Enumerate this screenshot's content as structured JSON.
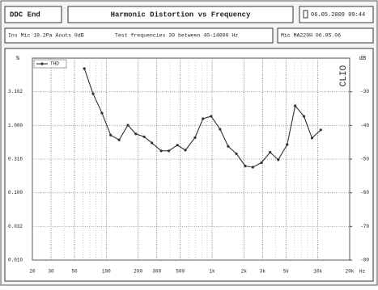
{
  "header": {
    "left": "DDC End",
    "title": "Harmonic Distortion vs Frequency",
    "date": "06.05.2009 09:44"
  },
  "info": {
    "settings": "Ins Mic 18.2Pa  Aouts 0dB",
    "test": "Test frequencies 30 between 40-14000 Hz",
    "mic": "Mic MA220H 06.05.06"
  },
  "chart_data": {
    "type": "line",
    "watermark": "CLIO",
    "y_label": "%",
    "y2_label": "dB",
    "x_unit": "Hz",
    "x": [
      62,
      75,
      91,
      110,
      132,
      160,
      190,
      228,
      270,
      330,
      390,
      470,
      560,
      690,
      820,
      980,
      1190,
      1420,
      1700,
      2060,
      2430,
      2930,
      3540,
      4220,
      5130,
      6110,
      7390,
      8810,
      10660
    ],
    "series": [
      {
        "name": "THD",
        "color": "#333333",
        "values": [
          7.0,
          2.96,
          1.53,
          0.72,
          0.61,
          1.01,
          0.75,
          0.68,
          0.55,
          0.42,
          0.42,
          0.51,
          0.43,
          0.66,
          1.26,
          1.37,
          0.88,
          0.49,
          0.38,
          0.25,
          0.24,
          0.28,
          0.4,
          0.31,
          0.52,
          1.96,
          1.37,
          0.65,
          0.86
        ]
      }
    ],
    "xlim": [
      20,
      20000
    ],
    "xticks": [
      20,
      30,
      50,
      100,
      200,
      300,
      500,
      {
        "value": 1000,
        "label": "1k"
      },
      {
        "value": 2000,
        "label": "2k"
      },
      {
        "value": 3000,
        "label": "3k"
      },
      {
        "value": 5000,
        "label": "5k"
      },
      {
        "value": 10000,
        "label": "10k"
      },
      {
        "value": 20000,
        "label": "20k"
      }
    ],
    "ylim": [
      0.01,
      10
    ],
    "yticks": [
      {
        "value": 0.01,
        "label": "0.010"
      },
      {
        "value": 0.0316,
        "label": "0.032"
      },
      {
        "value": 0.1,
        "label": "0.100"
      },
      0.316,
      {
        "value": 1,
        "label": "1.000"
      },
      3.162
    ],
    "y2lim": [
      -80,
      -20
    ],
    "y2ticks": [
      -80,
      -70,
      -60,
      -50,
      -40,
      -30
    ],
    "log_x": true,
    "log_y": true,
    "grid": true
  }
}
